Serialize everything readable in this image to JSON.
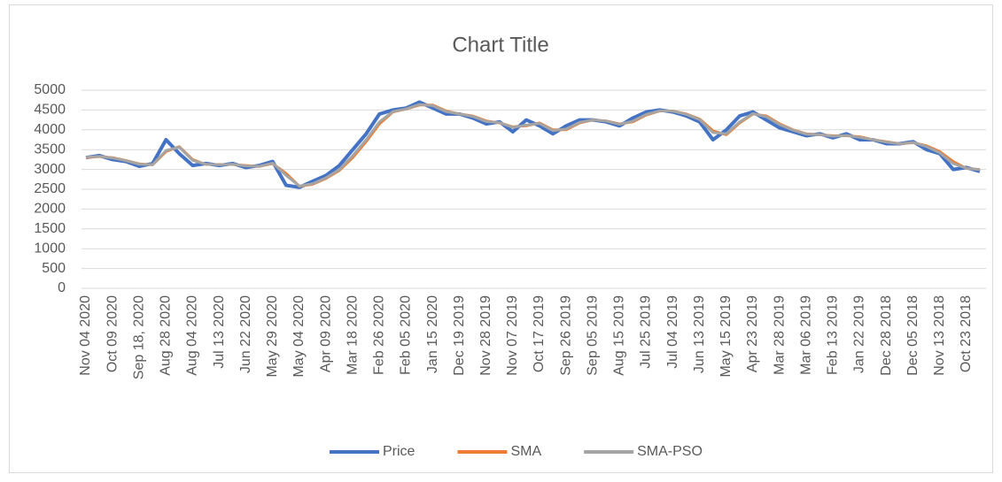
{
  "chart_data": {
    "type": "line",
    "title": "Chart Title",
    "categories": [
      "Nov 04 2020",
      null,
      "Oct 09 2020",
      null,
      "Sep 18, 2020",
      null,
      "Aug 28 2020",
      null,
      "Aug 04 2020",
      null,
      "Jul 13 2020",
      null,
      "Jun 22 2020",
      null,
      "May 29 2020",
      null,
      "May 04 2020",
      null,
      "Apr 09 2020",
      null,
      "Mar 18 2020",
      null,
      "Feb 26 2020",
      null,
      "Feb 05 2020",
      null,
      "Jan 15 2020",
      null,
      "Dec 19 2019",
      null,
      "Nov 28 2019",
      null,
      "Nov 07 2019",
      null,
      "Oct 17 2019",
      null,
      "Sep 26 2019",
      null,
      "Sep 05 2019",
      null,
      "Aug 15 2019",
      null,
      "Jul 25 2019",
      null,
      "Jul 04 2019",
      null,
      "Jun 13 2019",
      null,
      "May 15 2019",
      null,
      "Apr 23 2019",
      null,
      "Mar 28 2019",
      null,
      "Mar 06 2019",
      null,
      "Feb 13 2019",
      null,
      "Jan 22 2019",
      null,
      "Dec 28 2018",
      null,
      "Dec 05 2018",
      null,
      "Nov 13 2018",
      null,
      "Oct 23 2018",
      null
    ],
    "series": [
      {
        "name": "Price",
        "color": "#4472c4",
        "values": [
          3300,
          3350,
          3250,
          3200,
          3080,
          3150,
          3750,
          3400,
          3100,
          3150,
          3100,
          3150,
          3050,
          3100,
          3200,
          2600,
          2550,
          2700,
          2850,
          3100,
          3500,
          3900,
          4400,
          4500,
          4550,
          4700,
          4550,
          4400,
          4400,
          4300,
          4150,
          4200,
          3950,
          4250,
          4100,
          3900,
          4100,
          4250,
          4250,
          4200,
          4100,
          4300,
          4450,
          4500,
          4450,
          4350,
          4200,
          3750,
          4000,
          4350,
          4450,
          4250,
          4050,
          3950,
          3850,
          3900,
          3800,
          3900,
          3750,
          3750,
          3650,
          3650,
          3700,
          3500,
          3400,
          3000,
          3050,
          2950
        ]
      },
      {
        "name": "SMA",
        "color": "#ed7d31",
        "values": [
          3300,
          3325,
          3300,
          3225,
          3140,
          3115,
          3450,
          3575,
          3250,
          3125,
          3125,
          3125,
          3100,
          3075,
          3150,
          2900,
          2575,
          2625,
          2775,
          2975,
          3300,
          3700,
          4150,
          4450,
          4525,
          4625,
          4625,
          4475,
          4400,
          4350,
          4225,
          4175,
          4075,
          4100,
          4175,
          4000,
          4000,
          4175,
          4250,
          4225,
          4150,
          4200,
          4375,
          4475,
          4475,
          4400,
          4275,
          3975,
          3875,
          4175,
          4400,
          4350,
          4150,
          4000,
          3900,
          3875,
          3850,
          3850,
          3825,
          3750,
          3700,
          3650,
          3675,
          3600,
          3450,
          3200,
          3025,
          3000
        ]
      },
      {
        "name": "SMA-PSO",
        "color": "#a5a5a5",
        "values": [
          3310,
          3330,
          3290,
          3220,
          3130,
          3120,
          3480,
          3560,
          3230,
          3130,
          3120,
          3130,
          3090,
          3080,
          3160,
          2850,
          2580,
          2640,
          2790,
          3000,
          3350,
          3750,
          4200,
          4460,
          4530,
          4640,
          4610,
          4460,
          4400,
          4340,
          4210,
          4180,
          4060,
          4120,
          4160,
          3980,
          4020,
          4190,
          4250,
          4220,
          4140,
          4220,
          4390,
          4480,
          4470,
          4390,
          4260,
          3930,
          3900,
          4200,
          4410,
          4330,
          4130,
          3990,
          3890,
          3880,
          3840,
          3860,
          3810,
          3750,
          3690,
          3650,
          3680,
          3580,
          3420,
          3150,
          3030,
          2990
        ]
      }
    ],
    "ylim": [
      0,
      5000
    ],
    "yticks": [
      0,
      500,
      1000,
      1500,
      2000,
      2500,
      3000,
      3500,
      4000,
      4500,
      5000
    ],
    "grid": true,
    "legend": "bottom"
  }
}
